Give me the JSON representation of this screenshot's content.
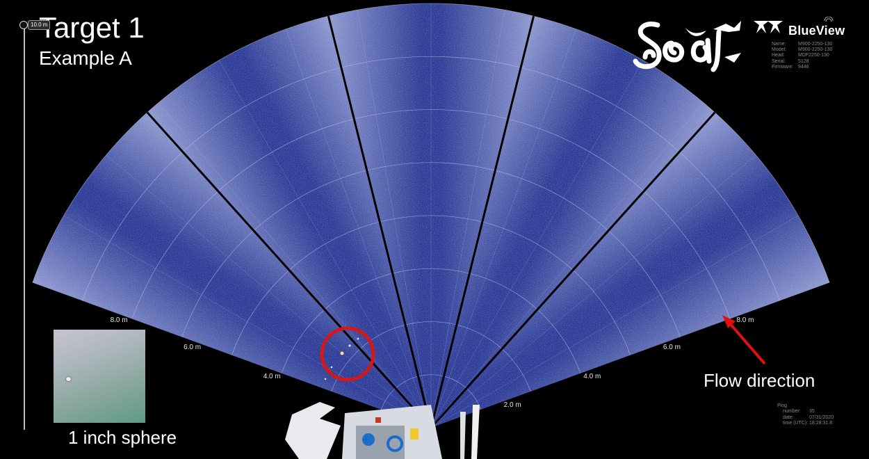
{
  "title": "Target 1",
  "subtitle": "Example A",
  "range_control": {
    "label": "10.0 m"
  },
  "brand": {
    "name": "BlueView"
  },
  "device_info": [
    {
      "key": "Name:",
      "value": "M900-2250-130"
    },
    {
      "key": "Model:",
      "value": "M900-2250-130"
    },
    {
      "key": "Head:",
      "value": "MDF2250-130"
    },
    {
      "key": "Serial:",
      "value": "5128"
    },
    {
      "key": "Firmware:",
      "value": "9446"
    }
  ],
  "ping_info": {
    "heading": "Ping",
    "rows": [
      {
        "key": "number:",
        "value": "35"
      },
      {
        "key": "date:",
        "value": "07/31/2020"
      },
      {
        "key": "time (UTC):",
        "value": "18:28:31.8"
      }
    ]
  },
  "range_rings_left": [
    "8.0 m",
    "6.0 m",
    "4.0 m"
  ],
  "range_rings_right": [
    "8.0 m",
    "6.0 m",
    "4.0 m",
    "2.0 m"
  ],
  "inset": {
    "caption": "1 inch sphere"
  },
  "annotation": {
    "flow_label": "Flow direction",
    "arrow_color": "#e01010",
    "target_circle_color": "#d41818"
  },
  "colors": {
    "sonar_base": "#2b3a95",
    "sonar_light": "#8f9ad0",
    "ring": "#c7cbe6"
  }
}
